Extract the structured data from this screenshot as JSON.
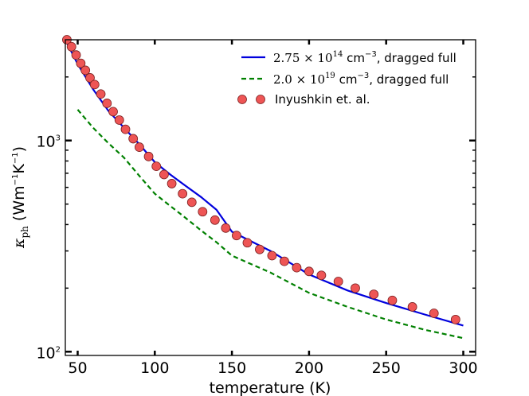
{
  "chart_data": {
    "type": "line",
    "title": "",
    "xlabel": "temperature (K)",
    "ylabel": "κ_ph (Wm⁻¹K⁻¹)",
    "ylabel_parts": {
      "symbol": "κ",
      "subscript": "ph",
      "units_open": " (Wm",
      "exp1": "−1",
      "k": "K",
      "exp2": "−1",
      "units_close": ")"
    },
    "xscale": "linear",
    "yscale": "log",
    "xlim": [
      42,
      308
    ],
    "ylim": [
      96,
      3000
    ],
    "xticks": [
      50,
      100,
      150,
      200,
      250,
      300
    ],
    "xtick_labels": [
      "50",
      "100",
      "150",
      "200",
      "250",
      "300"
    ],
    "yticks_major": [
      100,
      1000
    ],
    "ytick_labels": [
      {
        "base": "10",
        "exp": "2"
      },
      {
        "base": "10",
        "exp": "3"
      }
    ],
    "legend_position": "top-right",
    "series": [
      {
        "name": "2.75×10^14 cm^-3, dragged full",
        "label": {
          "mant": "2.75",
          "base": "10",
          "exp": "14",
          "unit": "cm",
          "unit_exp": "−3",
          "rest": ", dragged full"
        },
        "style": "solid",
        "color": "#0000dd",
        "x": [
          42,
          50,
          60,
          70,
          80,
          90,
          100,
          110,
          120,
          130,
          140,
          150,
          175,
          200,
          225,
          250,
          275,
          300
        ],
        "y": [
          3000,
          2300,
          1750,
          1380,
          1150,
          960,
          790,
          690,
          610,
          540,
          470,
          370,
          300,
          232,
          195,
          170,
          150,
          133
        ]
      },
      {
        "name": "2.0×10^19 cm^-3, dragged full",
        "label": {
          "mant": "2.0",
          "base": "10",
          "exp": "19",
          "unit": "cm",
          "unit_exp": "−3",
          "rest": ", dragged full"
        },
        "style": "dashed",
        "color": "#008000",
        "x": [
          50,
          60,
          70,
          80,
          90,
          100,
          110,
          120,
          130,
          140,
          150,
          175,
          200,
          225,
          250,
          275,
          300
        ],
        "y": [
          1400,
          1150,
          970,
          830,
          680,
          560,
          490,
          430,
          375,
          330,
          285,
          237,
          190,
          163,
          142,
          127,
          116
        ]
      },
      {
        "name": "Inyushkin et. al.",
        "label": {
          "text": "Inyushkin et. al."
        },
        "style": "markers",
        "color": "#ee5555",
        "x": [
          43,
          46,
          49,
          52,
          55,
          58,
          61,
          65,
          69,
          73,
          77,
          81,
          86,
          90,
          96,
          101,
          106,
          111,
          118,
          124,
          131,
          139,
          146,
          153,
          160,
          168,
          176,
          184,
          192,
          200,
          208,
          219,
          230,
          242,
          254,
          267,
          281,
          295
        ],
        "y": [
          3000,
          2780,
          2540,
          2320,
          2150,
          1980,
          1840,
          1660,
          1500,
          1370,
          1250,
          1130,
          1020,
          930,
          840,
          755,
          690,
          625,
          560,
          510,
          460,
          420,
          385,
          355,
          328,
          305,
          285,
          268,
          250,
          240,
          230,
          215,
          200,
          187,
          175,
          163,
          152,
          142
        ]
      }
    ]
  }
}
